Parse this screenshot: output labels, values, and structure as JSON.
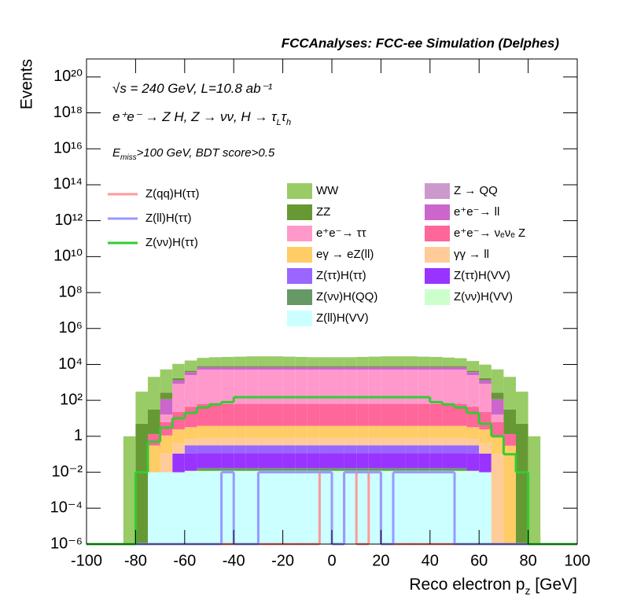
{
  "chart_data": {
    "type": "histogram",
    "stacked": true,
    "log_y": true,
    "title": "FCCAnalyses: FCC-ee Simulation (Delphes)",
    "annotations": [
      [
        "√s = 240 GeV, L=10.8 ab⁻¹"
      ],
      [
        "e⁺e⁻ → Z H, Z → νν, H → τ",
        "L",
        "τ",
        "h"
      ],
      [
        "E",
        "miss",
        ">100 GeV, BDT score>0.5"
      ]
    ],
    "xlabel": [
      "Reco electron p",
      "z",
      " [GeV]"
    ],
    "ylabel": "Events",
    "xlim": [
      -100,
      100
    ],
    "xticks": [
      -100,
      -80,
      -60,
      -40,
      -20,
      0,
      20,
      40,
      60,
      80,
      100
    ],
    "ylim": [
      1e-06,
      1e+21
    ],
    "yticks": [
      {
        "value": 1e-06,
        "label": "10⁻⁶"
      },
      {
        "value": 0.0001,
        "label": "10⁻⁴"
      },
      {
        "value": 0.01,
        "label": "10⁻²"
      },
      1,
      {
        "value": 100,
        "label": "10²"
      },
      {
        "value": 10000,
        "label": "10⁴"
      },
      {
        "value": 1000000.0,
        "label": "10⁶"
      },
      {
        "value": 100000000.0,
        "label": "10⁸"
      },
      {
        "value": 10000000000.0,
        "label": "10¹⁰"
      },
      {
        "value": 1000000000000.0,
        "label": "10¹²"
      },
      {
        "value": 100000000000000.0,
        "label": "10¹⁴"
      },
      {
        "value": 1e+16,
        "label": "10¹⁶"
      },
      {
        "value": 1e+18,
        "label": "10¹⁸"
      },
      {
        "value": 1e+20,
        "label": "10²⁰"
      }
    ],
    "bins": [
      -100,
      -95,
      -90,
      -85,
      -80,
      -75,
      -70,
      -65,
      -60,
      -55,
      -50,
      -45,
      -40,
      -35,
      -30,
      -25,
      -20,
      -15,
      -10,
      -5,
      0,
      5,
      10,
      15,
      20,
      25,
      30,
      35,
      40,
      45,
      50,
      55,
      60,
      65,
      70,
      75,
      80,
      85,
      90,
      95,
      100
    ],
    "series": [
      {
        "name": "WW",
        "color": "#99cc66",
        "values": [
          0,
          0,
          0,
          1,
          300,
          2000,
          5000,
          9000,
          12000,
          15000,
          17000,
          18000,
          19000,
          20000,
          20000,
          20000,
          19000,
          18000,
          17000,
          17000,
          17000,
          17000,
          18000,
          19000,
          20000,
          20000,
          20000,
          19000,
          18000,
          16000,
          14000,
          11000,
          8000,
          5000,
          2000,
          300,
          1,
          0,
          0,
          0
        ]
      },
      {
        "name": "Z → QQ",
        "color": "#cc99cc",
        "values": [
          0,
          0,
          0,
          0,
          0,
          0,
          10,
          40,
          70,
          100,
          100,
          100,
          100,
          100,
          100,
          100,
          100,
          100,
          100,
          100,
          100,
          100,
          100,
          100,
          100,
          100,
          100,
          100,
          100,
          100,
          100,
          70,
          40,
          10,
          0,
          0,
          0,
          0,
          0,
          0
        ]
      },
      {
        "name": "ZZ",
        "color": "#669933",
        "values": [
          0,
          0,
          0,
          0,
          5,
          30,
          150,
          400,
          700,
          1000,
          1000,
          1000,
          1000,
          1000,
          1000,
          1000,
          1000,
          1000,
          1000,
          1000,
          1000,
          1000,
          1000,
          1000,
          1000,
          1000,
          1000,
          1000,
          1000,
          1000,
          1000,
          700,
          400,
          150,
          30,
          5,
          0,
          0,
          0,
          0
        ]
      },
      {
        "name": "e⁺e⁻→ ll",
        "color": "#cc66cc",
        "values": [
          0,
          0,
          0,
          0,
          0,
          0,
          100,
          500,
          1200,
          2000,
          2000,
          2000,
          2000,
          2000,
          2000,
          2000,
          2000,
          2000,
          2000,
          2000,
          2000,
          2000,
          2000,
          2000,
          2000,
          2000,
          2000,
          2000,
          2000,
          2000,
          2000,
          1200,
          500,
          100,
          0,
          0,
          0,
          0,
          0,
          0
        ]
      },
      {
        "name": "e⁺e⁻→ ττ",
        "color": "#ff99cc",
        "values": [
          0,
          0,
          0,
          0,
          0,
          0,
          10,
          800,
          2500,
          5000,
          5000,
          5000,
          5000,
          5000,
          5000,
          5000,
          5000,
          5000,
          5000,
          5000,
          5000,
          5000,
          5000,
          5000,
          5000,
          5000,
          5000,
          5000,
          5000,
          5000,
          5000,
          2500,
          800,
          10,
          0,
          0,
          0,
          0,
          0,
          0
        ]
      },
      {
        "name": "e⁺e⁻→ νₑνₑ Z",
        "color": "#ff6699",
        "values": [
          0,
          0,
          0,
          0,
          0,
          1,
          5,
          20,
          40,
          60,
          60,
          60,
          60,
          60,
          60,
          60,
          60,
          60,
          60,
          60,
          60,
          60,
          60,
          60,
          60,
          60,
          60,
          60,
          60,
          60,
          60,
          40,
          20,
          5,
          1,
          0,
          0,
          0,
          0,
          0
        ]
      },
      {
        "name": "eγ → eZ(ll)",
        "color": "#ffcc66",
        "values": [
          0,
          0,
          0,
          0,
          0,
          0.3,
          1,
          2,
          2.5,
          3,
          3,
          3,
          3,
          3,
          3,
          3,
          3,
          3,
          3,
          3,
          3,
          3,
          3,
          3,
          3,
          3,
          3,
          3,
          3,
          3,
          3,
          2.5,
          2,
          1,
          0.3,
          0,
          0,
          0,
          0,
          0
        ]
      },
      {
        "name": "γγ → ll",
        "color": "#ffcc99",
        "values": [
          0,
          0,
          0,
          0,
          0,
          0,
          0.1,
          0.3,
          0.4,
          0.5,
          0.5,
          0.5,
          0.5,
          0.5,
          0.5,
          0.5,
          0.5,
          0.5,
          0.5,
          0.5,
          0.5,
          0.5,
          0.5,
          0.5,
          0.5,
          0.5,
          0.5,
          0.5,
          0.5,
          0.5,
          0.5,
          0.4,
          0.3,
          0.1,
          0,
          0,
          0,
          0,
          0,
          0
        ]
      },
      {
        "name": "Z(ττ)H(ττ)",
        "color": "#9966ff",
        "values": [
          0,
          0,
          0,
          0,
          0,
          0,
          0,
          0,
          0.2,
          0.2,
          0.2,
          0.2,
          0.2,
          0.2,
          0.2,
          0.2,
          0.2,
          0.2,
          0.2,
          0.2,
          0.2,
          0.2,
          0.2,
          0.2,
          0.2,
          0.2,
          0.2,
          0.2,
          0.2,
          0.2,
          0.2,
          0.2,
          0,
          0,
          0,
          0,
          0,
          0,
          0,
          0
        ]
      },
      {
        "name": "Z(ττ)H(VV)",
        "color": "#9933ff",
        "values": [
          0,
          0,
          0,
          0,
          0,
          0,
          0,
          0.1,
          0.1,
          0.1,
          0.1,
          0.1,
          0.1,
          0.1,
          0.1,
          0.1,
          0.1,
          0.1,
          0.1,
          0.1,
          0.1,
          0.1,
          0.1,
          0.1,
          0.1,
          0.1,
          0.1,
          0.1,
          0.1,
          0.1,
          0.1,
          0.1,
          0.1,
          0,
          0,
          0,
          0,
          0,
          0,
          0
        ]
      },
      {
        "name": "Z(νν)H(QQ)",
        "color": "#669966",
        "values": [
          0,
          0,
          0,
          0,
          0,
          0,
          0,
          0,
          0,
          0.005,
          0.005,
          0.005,
          0.005,
          0.005,
          0.005,
          0.005,
          0.005,
          0.005,
          0.005,
          0.005,
          0.005,
          0.005,
          0.005,
          0.005,
          0.005,
          0.005,
          0.005,
          0.005,
          0.005,
          0.005,
          0.005,
          0,
          0,
          0,
          0,
          0,
          0,
          0,
          0,
          0
        ]
      },
      {
        "name": "Z(νν)H(VV)",
        "color": "#ccffcc",
        "values": [
          0,
          0,
          0,
          0,
          0,
          0,
          0,
          0,
          0.002,
          0.002,
          0.002,
          0.002,
          0.002,
          0.002,
          0.002,
          0.002,
          0.002,
          0.002,
          0.002,
          0.002,
          0.002,
          0.002,
          0.002,
          0.002,
          0.002,
          0.002,
          0.002,
          0.002,
          0.002,
          0.002,
          0.002,
          0.002,
          0,
          0,
          0,
          0,
          0,
          0,
          0,
          0
        ]
      },
      {
        "name": "Z(ll)H(VV)",
        "color": "#ccffff",
        "values": [
          0,
          0,
          0,
          0,
          0,
          0.01,
          0.01,
          0.01,
          0.01,
          0.01,
          0.01,
          0.01,
          0.01,
          0.01,
          0.01,
          0.01,
          0.01,
          0.01,
          0.01,
          0.01,
          0.01,
          0.01,
          0.01,
          0.01,
          0.01,
          0.01,
          0.01,
          0.01,
          0.01,
          0.01,
          0.01,
          0.01,
          0.01,
          0,
          0,
          0,
          0,
          0,
          0,
          0
        ]
      }
    ],
    "lines": [
      {
        "name": "Z(qq)H(ττ)",
        "color": "#ff9999",
        "values": [
          0,
          0,
          0,
          0,
          0,
          0,
          0,
          0,
          0,
          0,
          0,
          0,
          0,
          0,
          0,
          0,
          0,
          0,
          0,
          0.01,
          0,
          0.01,
          0,
          0.01,
          0,
          0,
          0,
          0,
          0,
          0,
          0,
          0,
          0,
          0,
          0,
          0,
          0,
          0,
          0,
          0
        ]
      },
      {
        "name": "Z(ll)H(ττ)",
        "color": "#9999ff",
        "values": [
          0,
          0,
          0,
          0,
          0,
          0,
          0,
          0,
          0,
          0,
          0,
          0.01,
          0,
          0,
          0.01,
          0.01,
          0.01,
          0.01,
          0.01,
          0.01,
          0,
          0.01,
          0.01,
          0.01,
          0,
          0.01,
          0.01,
          0.01,
          0.01,
          0.01,
          0,
          0,
          0,
          0,
          0,
          0,
          0,
          0,
          0,
          0
        ]
      },
      {
        "name": "Z(νν)H(ττ)",
        "color": "#33cc33",
        "values": [
          0,
          0,
          0,
          0,
          0.01,
          0.5,
          3,
          10,
          20,
          40,
          60,
          80,
          150,
          150,
          150,
          150,
          150,
          150,
          150,
          150,
          150,
          150,
          150,
          150,
          150,
          150,
          150,
          150,
          80,
          60,
          40,
          20,
          5,
          1,
          0.1,
          0.01,
          0,
          0,
          0,
          0
        ]
      }
    ]
  }
}
